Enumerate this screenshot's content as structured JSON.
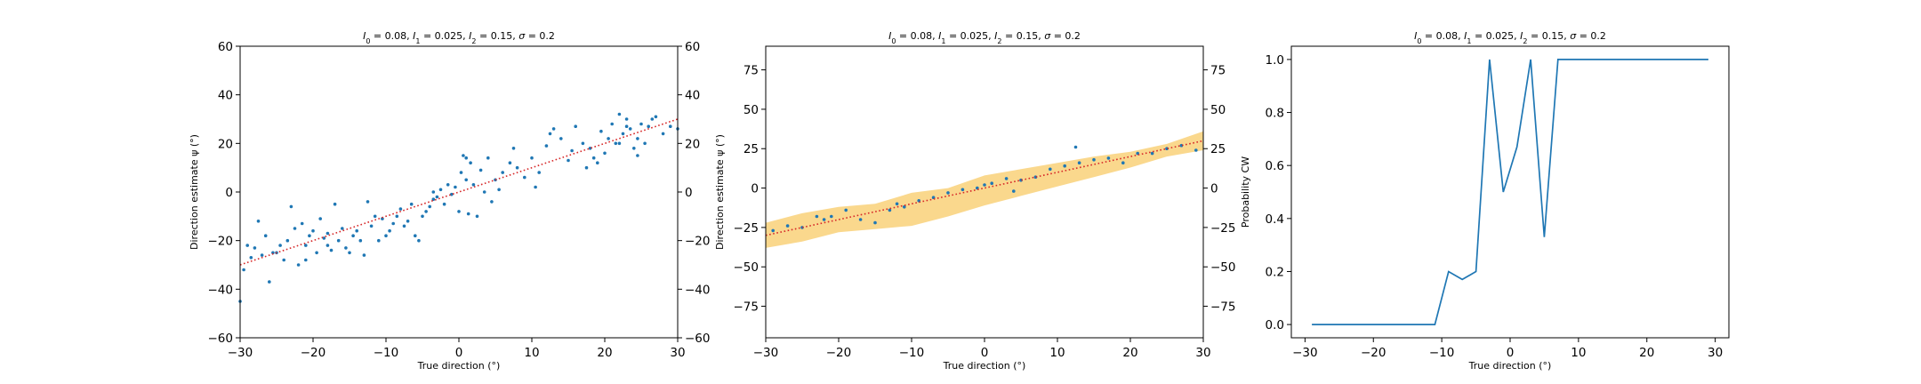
{
  "chart_data": [
    {
      "type": "scatter",
      "title": "$I_0=0.08$, $I_1=0.025$, $I_2=0.15$, $\\sigma=0.2$",
      "title_parts": [
        "I",
        "0",
        " = 0.08, ",
        "I",
        "1",
        " = 0.025, ",
        "I",
        "2",
        " = 0.15, ",
        "σ",
        " = 0.2"
      ],
      "xlabel": "True direction (°)",
      "ylabel": "Direction estimate ψ (°)",
      "xlim": [
        -30,
        30
      ],
      "ylim": [
        -60,
        60
      ],
      "xticks": [
        -30,
        -20,
        -10,
        0,
        10,
        20,
        30
      ],
      "yticks": [
        -60,
        -40,
        -20,
        0,
        20,
        40,
        60
      ],
      "right_yticks": [
        -60,
        -40,
        -20,
        0,
        20,
        40,
        60
      ],
      "grid": false,
      "points": [
        [
          -30,
          -45
        ],
        [
          -29.5,
          -32
        ],
        [
          -29,
          -22
        ],
        [
          -28.5,
          -27
        ],
        [
          -28,
          -23
        ],
        [
          -27.5,
          -12
        ],
        [
          -27,
          -26
        ],
        [
          -26.5,
          -18
        ],
        [
          -26,
          -37
        ],
        [
          -25.5,
          -25
        ],
        [
          -25,
          -25
        ],
        [
          -24.5,
          -22
        ],
        [
          -24,
          -28
        ],
        [
          -23.5,
          -20
        ],
        [
          -23,
          -6
        ],
        [
          -22.5,
          -15
        ],
        [
          -22,
          -30
        ],
        [
          -21.5,
          -13
        ],
        [
          -21,
          -22
        ],
        [
          -20.5,
          -18
        ],
        [
          -20,
          -16
        ],
        [
          -19.5,
          -25
        ],
        [
          -19,
          -11
        ],
        [
          -18.5,
          -19
        ],
        [
          -18,
          -17
        ],
        [
          -17.5,
          -24
        ],
        [
          -17,
          -5
        ],
        [
          -16.5,
          -20
        ],
        [
          -16,
          -15
        ],
        [
          -15.5,
          -23
        ],
        [
          -15,
          -25
        ],
        [
          -14.5,
          -18
        ],
        [
          -14,
          -16
        ],
        [
          -13.5,
          -20
        ],
        [
          -13,
          -26
        ],
        [
          -12.5,
          -4
        ],
        [
          -12,
          -14
        ],
        [
          -11.5,
          -10
        ],
        [
          -11,
          -20
        ],
        [
          -10.5,
          -11
        ],
        [
          -10,
          -18
        ],
        [
          -9.5,
          -16
        ],
        [
          -9,
          -13
        ],
        [
          -8.5,
          -10
        ],
        [
          -8,
          -7
        ],
        [
          -7.5,
          -14
        ],
        [
          -7,
          -12
        ],
        [
          -6.5,
          -5
        ],
        [
          -6,
          -18
        ],
        [
          -5.5,
          -20
        ],
        [
          -5,
          -10
        ],
        [
          -4.5,
          -8
        ],
        [
          -4,
          -6
        ],
        [
          -3.5,
          0
        ],
        [
          -3,
          -2
        ],
        [
          -2.5,
          1
        ],
        [
          -2,
          -5
        ],
        [
          -1.5,
          3
        ],
        [
          -1,
          -1
        ],
        [
          -0.5,
          2
        ],
        [
          0,
          -8
        ],
        [
          0.3,
          8
        ],
        [
          0.6,
          15
        ],
        [
          1,
          5
        ],
        [
          1.3,
          -9
        ],
        [
          1.6,
          12
        ],
        [
          2,
          3
        ],
        [
          2.5,
          -10
        ],
        [
          3,
          9
        ],
        [
          3.5,
          0
        ],
        [
          4,
          14
        ],
        [
          4.5,
          -4
        ],
        [
          5,
          5
        ],
        [
          5.5,
          1
        ],
        [
          6,
          8
        ],
        [
          7,
          12
        ],
        [
          7.5,
          18
        ],
        [
          8,
          10
        ],
        [
          9,
          6
        ],
        [
          10,
          14
        ],
        [
          11,
          8
        ],
        [
          12,
          19
        ],
        [
          12.5,
          24
        ],
        [
          13,
          26
        ],
        [
          14,
          22
        ],
        [
          15,
          13
        ],
        [
          15.5,
          17
        ],
        [
          16,
          27
        ],
        [
          17,
          20
        ],
        [
          17.5,
          10
        ],
        [
          18,
          18
        ],
        [
          18.5,
          14
        ],
        [
          19,
          12
        ],
        [
          19.5,
          25
        ],
        [
          20,
          16
        ],
        [
          20.5,
          22
        ],
        [
          21,
          28
        ],
        [
          21.5,
          20
        ],
        [
          22,
          32
        ],
        [
          22.5,
          24
        ],
        [
          23,
          30
        ],
        [
          23.5,
          26
        ],
        [
          24,
          18
        ],
        [
          24.5,
          22
        ],
        [
          25,
          28
        ],
        [
          25.5,
          20
        ],
        [
          26,
          27
        ],
        [
          26.5,
          30
        ],
        [
          27,
          31
        ],
        [
          28,
          24
        ],
        [
          29,
          27
        ],
        [
          30,
          26
        ],
        [
          22,
          20
        ],
        [
          23,
          27
        ],
        [
          24.5,
          15
        ],
        [
          -3.5,
          -3
        ],
        [
          -18,
          -22
        ],
        [
          -21,
          -28
        ],
        [
          1,
          14
        ],
        [
          10.5,
          2
        ]
      ],
      "fit_line": {
        "x": [
          -30,
          30
        ],
        "y": [
          -30,
          30
        ],
        "style": "dotted",
        "color": "#d62728"
      },
      "colors": {
        "points": "#1f77b4",
        "fit": "#d62728"
      }
    },
    {
      "type": "line",
      "title": "$I_0=0.08$, $I_1=0.025$, $I_2=0.15$, $\\sigma=0.2$",
      "title_parts": [
        "I",
        "0",
        " = 0.08, ",
        "I",
        "1",
        " = 0.025, ",
        "I",
        "2",
        " = 0.15, ",
        "σ",
        " = 0.2"
      ],
      "xlabel": "True direction (°)",
      "ylabel": "Direction estimate ψ (°)",
      "xlim": [
        -30,
        30
      ],
      "ylim": [
        -95,
        90
      ],
      "xticks": [
        -30,
        -20,
        -10,
        0,
        10,
        20,
        30
      ],
      "yticks": [
        -75,
        -50,
        -25,
        0,
        25,
        50,
        75
      ],
      "right_yticks": [
        -75,
        -50,
        -25,
        0,
        25,
        50,
        75
      ],
      "grid": false,
      "band": {
        "x": [
          -30,
          -25,
          -20,
          -15,
          -10,
          -5,
          0,
          5,
          10,
          15,
          20,
          25,
          30
        ],
        "lower": [
          -38,
          -34,
          -28,
          -26,
          -24,
          -18,
          -11,
          -5,
          1,
          7,
          13,
          20,
          24
        ],
        "upper": [
          -22,
          -16,
          -12,
          -10,
          -3,
          0,
          8,
          12,
          16,
          20,
          23,
          28,
          36
        ]
      },
      "points": [
        [
          -29,
          -27
        ],
        [
          -27,
          -24
        ],
        [
          -25,
          -25
        ],
        [
          -23,
          -18
        ],
        [
          -21,
          -18
        ],
        [
          -19,
          -14
        ],
        [
          -17,
          -20
        ],
        [
          -15,
          -22
        ],
        [
          -13,
          -14
        ],
        [
          -11,
          -12
        ],
        [
          -9,
          -8
        ],
        [
          -7,
          -6
        ],
        [
          -5,
          -3
        ],
        [
          -3,
          -1
        ],
        [
          -1,
          0
        ],
        [
          1,
          3
        ],
        [
          3,
          6
        ],
        [
          4,
          -2
        ],
        [
          5,
          5
        ],
        [
          7,
          7
        ],
        [
          9,
          12
        ],
        [
          11,
          14
        ],
        [
          12.5,
          26
        ],
        [
          13,
          16
        ],
        [
          15,
          18
        ],
        [
          17,
          19
        ],
        [
          19,
          16
        ],
        [
          21,
          22
        ],
        [
          23,
          22
        ],
        [
          25,
          25
        ],
        [
          27,
          27
        ],
        [
          29,
          24
        ],
        [
          -22,
          -20
        ],
        [
          -12,
          -10
        ],
        [
          0,
          2
        ]
      ],
      "fit_line": {
        "x": [
          -30,
          30
        ],
        "y": [
          -30,
          30
        ],
        "style": "dotted",
        "color": "#d62728"
      },
      "colors": {
        "points": "#1f77b4",
        "band": "#f5b830",
        "fit": "#d62728"
      }
    },
    {
      "type": "line",
      "title": "$I_0=0.08$, $I_1=0.025$, $I_2=0.15$, $\\sigma=0.2$",
      "title_parts": [
        "I",
        "0",
        " = 0.08, ",
        "I",
        "1",
        " = 0.025, ",
        "I",
        "2",
        " = 0.15, ",
        "σ",
        " = 0.2"
      ],
      "xlabel": "True direction (°)",
      "ylabel": "Probability CW",
      "xlim": [
        -32,
        32
      ],
      "ylim": [
        -0.05,
        1.05
      ],
      "xticks": [
        -30,
        -20,
        -10,
        0,
        10,
        20,
        30
      ],
      "yticks": [
        0.0,
        0.2,
        0.4,
        0.6,
        0.8,
        1.0
      ],
      "ytick_labels": [
        "0.0",
        "0.2",
        "0.4",
        "0.6",
        "0.8",
        "1.0"
      ],
      "grid": false,
      "series": [
        {
          "x": [
            -29,
            -27,
            -25,
            -23,
            -21,
            -19,
            -17,
            -15,
            -13,
            -11,
            -9,
            -7,
            -5,
            -3,
            -1,
            1,
            3,
            5,
            7,
            9,
            11,
            13,
            15,
            17,
            19,
            21,
            23,
            25,
            27,
            29
          ],
          "values": [
            0,
            0,
            0,
            0,
            0,
            0,
            0,
            0,
            0,
            0,
            0.2,
            0.17,
            0.2,
            1.0,
            0.5,
            0.67,
            1.0,
            0.33,
            1.0,
            1.0,
            1.0,
            1.0,
            1.0,
            1.0,
            1.0,
            1.0,
            1.0,
            1.0,
            1.0,
            1.0
          ]
        }
      ],
      "colors": {
        "line": "#1f77b4"
      }
    }
  ]
}
